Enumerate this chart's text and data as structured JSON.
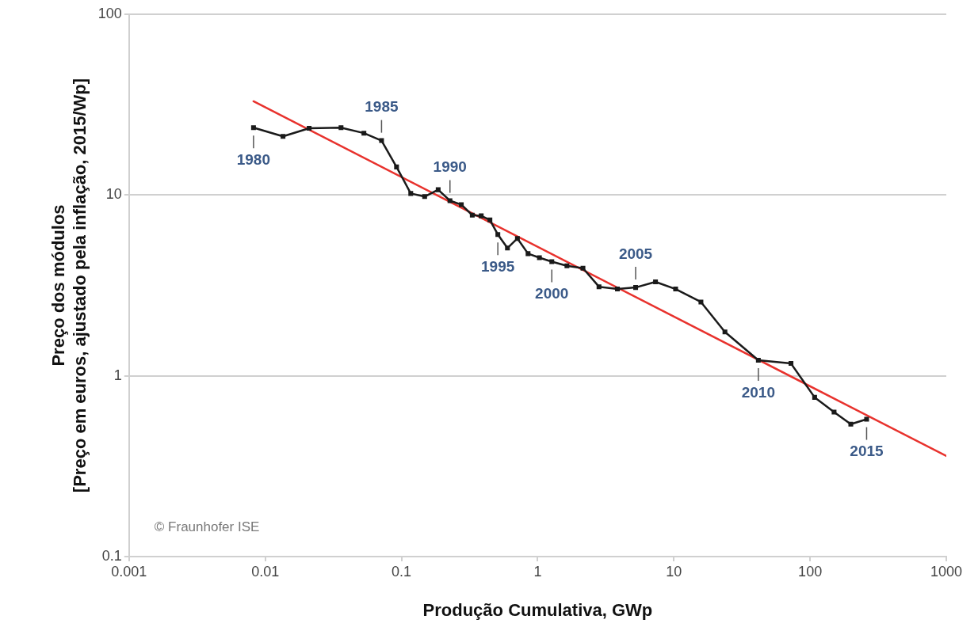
{
  "chart_data": {
    "type": "line",
    "xlabel": "Produção Cumulativa, GWp",
    "ylabel": "Preço dos módulos\n[Preço em euros, ajustado pela inflação, 2015/Wp]",
    "log": "xy",
    "grid": "y",
    "legend": false,
    "marker": "square",
    "line_style": "solid",
    "xlim": [
      0.001,
      1000
    ],
    "xticks": [
      0.001,
      0.01,
      0.1,
      1,
      10,
      100,
      1000
    ],
    "ylim": [
      0.1,
      100
    ],
    "yticks": [
      0.1,
      1,
      10,
      100
    ],
    "series": [
      {
        "color": "#1a1a1a",
        "x": [
          0.0082,
          0.0135,
          0.021,
          0.036,
          0.053,
          0.0714,
          0.092,
          0.117,
          0.148,
          0.186,
          0.227,
          0.275,
          0.331,
          0.385,
          0.446,
          0.51,
          0.6,
          0.71,
          0.85,
          1.03,
          1.27,
          1.64,
          2.15,
          2.82,
          3.85,
          5.24,
          7.33,
          10.3,
          15.8,
          23.7,
          41.7,
          72.4,
          108,
          150,
          199,
          260
        ],
        "values": [
          23.6,
          21.1,
          23.4,
          23.6,
          22.0,
          20.0,
          14.3,
          10.2,
          9.8,
          10.7,
          9.3,
          8.85,
          7.74,
          7.67,
          7.28,
          6.05,
          5.09,
          5.75,
          4.74,
          4.5,
          4.28,
          4.06,
          3.94,
          3.11,
          3.02,
          3.08,
          3.31,
          3.02,
          2.56,
          1.75,
          1.22,
          1.17,
          0.76,
          0.63,
          0.54,
          0.575
        ]
      },
      {
        "type": "line",
        "color": "#e8322d",
        "marker": "none",
        "x": [
          0.0082,
          1000
        ],
        "values": [
          33,
          0.36
        ]
      }
    ],
    "annotations": [
      {
        "text": "1980",
        "x": 0.0082,
        "y": 23.6
      },
      {
        "text": "1985",
        "x": 0.0714,
        "y": 20.0
      },
      {
        "text": "1990",
        "x": 0.227,
        "y": 9.3
      },
      {
        "text": "1995",
        "x": 0.51,
        "y": 6.05
      },
      {
        "text": "2000",
        "x": 1.27,
        "y": 4.28
      },
      {
        "text": "2005",
        "x": 5.24,
        "y": 3.08
      },
      {
        "text": "2010",
        "x": 41.7,
        "y": 1.22
      },
      {
        "text": "2015",
        "x": 260,
        "y": 0.575
      },
      "© Fraunhofer ISE"
    ]
  }
}
